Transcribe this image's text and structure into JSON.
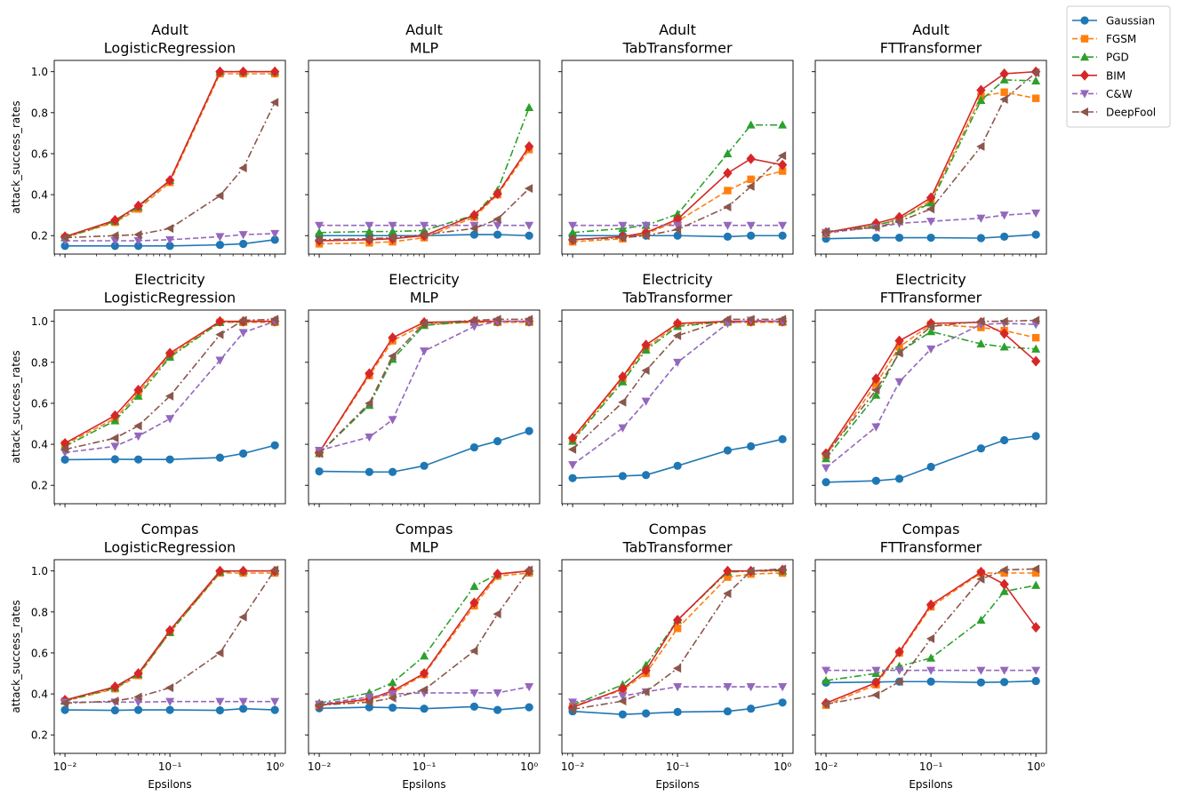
{
  "figure": {
    "xlabel": "Epsilons",
    "ylabel": "attack_success_rates",
    "xscale": "log",
    "xlim": [
      0.0079,
      1.26
    ],
    "ylim": [
      0.11,
      1.055
    ],
    "xticks": [
      0.01,
      0.1,
      1
    ],
    "xtick_labels": [
      "10⁻²",
      "10⁻¹",
      "10⁰"
    ],
    "yticks": [
      0.2,
      0.4,
      0.6,
      0.8,
      1.0
    ],
    "ytick_labels": [
      "0.2",
      "0.4",
      "0.6",
      "0.8",
      "1.0"
    ],
    "epsilons": [
      0.01,
      0.03,
      0.05,
      0.1,
      0.3,
      0.5,
      1.0
    ]
  },
  "legend": {
    "placement": "top-right outside",
    "entries": [
      {
        "name": "Gaussian",
        "color": "#1f77b4",
        "marker": "circle",
        "dash": "solid"
      },
      {
        "name": "FGSM",
        "color": "#ff7f0e",
        "marker": "square",
        "dash": "dashed"
      },
      {
        "name": "PGD",
        "color": "#2ca02c",
        "marker": "triangle-up",
        "dash": "dashdot"
      },
      {
        "name": "BIM",
        "color": "#d62728",
        "marker": "diamond",
        "dash": "solid"
      },
      {
        "name": "C&W",
        "color": "#9467bd",
        "marker": "triangle-down",
        "dash": "dashed"
      },
      {
        "name": "DeepFool",
        "color": "#8c564b",
        "marker": "triangle-left",
        "dash": "dashdot"
      }
    ]
  },
  "chart_data": [
    {
      "type": "line",
      "dataset": "Adult",
      "model": "LogisticRegression",
      "title": "Adult\nLogisticRegression",
      "x": [
        0.01,
        0.03,
        0.05,
        0.1,
        0.3,
        0.5,
        1.0
      ],
      "series": [
        {
          "name": "Gaussian",
          "values": [
            0.15,
            0.15,
            0.15,
            0.15,
            0.155,
            0.16,
            0.18
          ]
        },
        {
          "name": "FGSM",
          "values": [
            0.19,
            0.265,
            0.33,
            0.46,
            0.99,
            0.99,
            0.99
          ]
        },
        {
          "name": "PGD",
          "values": [
            0.19,
            0.27,
            0.34,
            0.47,
            1.0,
            1.0,
            1.0
          ]
        },
        {
          "name": "BIM",
          "values": [
            0.195,
            0.275,
            0.345,
            0.47,
            1.0,
            1.0,
            1.0
          ]
        },
        {
          "name": "C&W",
          "values": [
            0.175,
            0.175,
            0.175,
            0.18,
            0.195,
            0.205,
            0.21
          ]
        },
        {
          "name": "DeepFool",
          "values": [
            0.19,
            0.2,
            0.205,
            0.235,
            0.395,
            0.53,
            0.85
          ]
        }
      ]
    },
    {
      "type": "line",
      "dataset": "Adult",
      "model": "MLP",
      "title": "Adult\nMLP",
      "x": [
        0.01,
        0.03,
        0.05,
        0.1,
        0.3,
        0.5,
        1.0
      ],
      "series": [
        {
          "name": "Gaussian",
          "values": [
            0.2,
            0.2,
            0.2,
            0.2,
            0.205,
            0.205,
            0.2
          ]
        },
        {
          "name": "FGSM",
          "values": [
            0.16,
            0.165,
            0.17,
            0.19,
            0.29,
            0.4,
            0.62
          ]
        },
        {
          "name": "PGD",
          "values": [
            0.215,
            0.22,
            0.22,
            0.225,
            0.3,
            0.42,
            0.825
          ]
        },
        {
          "name": "BIM",
          "values": [
            0.175,
            0.18,
            0.185,
            0.2,
            0.3,
            0.405,
            0.635
          ]
        },
        {
          "name": "C&W",
          "values": [
            0.25,
            0.25,
            0.25,
            0.25,
            0.25,
            0.25,
            0.25
          ]
        },
        {
          "name": "DeepFool",
          "values": [
            0.18,
            0.185,
            0.19,
            0.205,
            0.235,
            0.28,
            0.43
          ]
        }
      ]
    },
    {
      "type": "line",
      "dataset": "Adult",
      "model": "TabTransformer",
      "title": "Adult\nTabTransformer",
      "x": [
        0.01,
        0.03,
        0.05,
        0.1,
        0.3,
        0.5,
        1.0
      ],
      "series": [
        {
          "name": "Gaussian",
          "values": [
            0.2,
            0.2,
            0.2,
            0.2,
            0.195,
            0.2,
            0.2
          ]
        },
        {
          "name": "FGSM",
          "values": [
            0.17,
            0.185,
            0.21,
            0.27,
            0.42,
            0.475,
            0.515
          ]
        },
        {
          "name": "PGD",
          "values": [
            0.215,
            0.235,
            0.25,
            0.305,
            0.6,
            0.74,
            0.74
          ]
        },
        {
          "name": "BIM",
          "values": [
            0.18,
            0.195,
            0.215,
            0.28,
            0.505,
            0.575,
            0.545
          ]
        },
        {
          "name": "C&W",
          "values": [
            0.25,
            0.25,
            0.25,
            0.25,
            0.25,
            0.25,
            0.25
          ]
        },
        {
          "name": "DeepFool",
          "values": [
            0.18,
            0.19,
            0.2,
            0.23,
            0.34,
            0.44,
            0.59
          ]
        }
      ]
    },
    {
      "type": "line",
      "dataset": "Adult",
      "model": "FTTransformer",
      "title": "Adult\nFTTransformer",
      "x": [
        0.01,
        0.03,
        0.05,
        0.1,
        0.3,
        0.5,
        1.0
      ],
      "series": [
        {
          "name": "Gaussian",
          "values": [
            0.185,
            0.19,
            0.19,
            0.19,
            0.188,
            0.195,
            0.205
          ]
        },
        {
          "name": "FGSM",
          "values": [
            0.21,
            0.25,
            0.28,
            0.37,
            0.88,
            0.9,
            0.87
          ]
        },
        {
          "name": "PGD",
          "values": [
            0.215,
            0.25,
            0.28,
            0.36,
            0.86,
            0.96,
            0.955
          ]
        },
        {
          "name": "BIM",
          "values": [
            0.215,
            0.26,
            0.29,
            0.385,
            0.91,
            0.99,
            1.0
          ]
        },
        {
          "name": "C&W",
          "values": [
            0.215,
            0.24,
            0.26,
            0.27,
            0.285,
            0.3,
            0.31
          ]
        },
        {
          "name": "DeepFool",
          "values": [
            0.22,
            0.24,
            0.27,
            0.33,
            0.635,
            0.865,
            0.995
          ]
        }
      ]
    },
    {
      "type": "line",
      "dataset": "Electricity",
      "model": "LogisticRegression",
      "title": "Electricity\nLogisticRegression",
      "x": [
        0.01,
        0.03,
        0.05,
        0.1,
        0.3,
        0.5,
        1.0
      ],
      "series": [
        {
          "name": "Gaussian",
          "values": [
            0.325,
            0.327,
            0.326,
            0.326,
            0.335,
            0.355,
            0.395
          ]
        },
        {
          "name": "FGSM",
          "values": [
            0.4,
            0.525,
            0.65,
            0.835,
            0.995,
            0.995,
            0.995
          ]
        },
        {
          "name": "PGD",
          "values": [
            0.39,
            0.515,
            0.635,
            0.825,
            0.995,
            1.0,
            1.0
          ]
        },
        {
          "name": "BIM",
          "values": [
            0.405,
            0.54,
            0.665,
            0.845,
            1.0,
            1.0,
            1.0
          ]
        },
        {
          "name": "C&W",
          "values": [
            0.36,
            0.39,
            0.44,
            0.525,
            0.81,
            0.945,
            1.0
          ]
        },
        {
          "name": "DeepFool",
          "values": [
            0.375,
            0.43,
            0.49,
            0.635,
            0.935,
            1.005,
            1.01
          ]
        }
      ]
    },
    {
      "type": "line",
      "dataset": "Electricity",
      "model": "MLP",
      "title": "Electricity\nMLP",
      "x": [
        0.01,
        0.03,
        0.05,
        0.1,
        0.3,
        0.5,
        1.0
      ],
      "series": [
        {
          "name": "Gaussian",
          "values": [
            0.268,
            0.265,
            0.265,
            0.295,
            0.385,
            0.415,
            0.465
          ]
        },
        {
          "name": "FGSM",
          "values": [
            0.36,
            0.735,
            0.905,
            0.985,
            0.995,
            0.995,
            0.995
          ]
        },
        {
          "name": "PGD",
          "values": [
            0.355,
            0.59,
            0.815,
            0.98,
            1.0,
            1.0,
            1.0
          ]
        },
        {
          "name": "BIM",
          "values": [
            0.36,
            0.745,
            0.92,
            0.995,
            1.0,
            1.0,
            1.0
          ]
        },
        {
          "name": "C&W",
          "values": [
            0.37,
            0.435,
            0.52,
            0.855,
            0.975,
            1.0,
            1.0
          ]
        },
        {
          "name": "DeepFool",
          "values": [
            0.355,
            0.6,
            0.83,
            0.99,
            1.005,
            1.01,
            1.01
          ]
        }
      ]
    },
    {
      "type": "line",
      "dataset": "Electricity",
      "model": "TabTransformer",
      "title": "Electricity\nTabTransformer",
      "x": [
        0.01,
        0.03,
        0.05,
        0.1,
        0.3,
        0.5,
        1.0
      ],
      "series": [
        {
          "name": "Gaussian",
          "values": [
            0.235,
            0.245,
            0.25,
            0.295,
            0.37,
            0.39,
            0.425
          ]
        },
        {
          "name": "FGSM",
          "values": [
            0.42,
            0.72,
            0.87,
            0.985,
            0.995,
            0.995,
            0.995
          ]
        },
        {
          "name": "PGD",
          "values": [
            0.415,
            0.705,
            0.86,
            0.975,
            1.0,
            1.0,
            1.0
          ]
        },
        {
          "name": "BIM",
          "values": [
            0.43,
            0.73,
            0.885,
            0.99,
            1.0,
            1.0,
            1.0
          ]
        },
        {
          "name": "C&W",
          "values": [
            0.3,
            0.48,
            0.61,
            0.8,
            0.99,
            1.005,
            1.0
          ]
        },
        {
          "name": "DeepFool",
          "values": [
            0.375,
            0.605,
            0.76,
            0.93,
            1.01,
            1.01,
            1.01
          ]
        }
      ]
    },
    {
      "type": "line",
      "dataset": "Electricity",
      "model": "FTTransformer",
      "title": "Electricity\nFTTransformer",
      "x": [
        0.01,
        0.03,
        0.05,
        0.1,
        0.3,
        0.5,
        1.0
      ],
      "series": [
        {
          "name": "Gaussian",
          "values": [
            0.215,
            0.222,
            0.232,
            0.29,
            0.38,
            0.42,
            0.44
          ]
        },
        {
          "name": "FGSM",
          "values": [
            0.345,
            0.695,
            0.875,
            0.985,
            0.97,
            0.955,
            0.92
          ]
        },
        {
          "name": "PGD",
          "values": [
            0.33,
            0.64,
            0.85,
            0.95,
            0.89,
            0.875,
            0.865
          ]
        },
        {
          "name": "BIM",
          "values": [
            0.355,
            0.72,
            0.905,
            0.99,
            0.995,
            0.94,
            0.805
          ]
        },
        {
          "name": "C&W",
          "values": [
            0.285,
            0.485,
            0.705,
            0.865,
            0.985,
            0.99,
            0.985
          ]
        },
        {
          "name": "DeepFool",
          "values": [
            0.35,
            0.665,
            0.845,
            0.975,
            1.0,
            1.0,
            1.005
          ]
        }
      ]
    },
    {
      "type": "line",
      "dataset": "Compas",
      "model": "LogisticRegression",
      "title": "Compas\nLogisticRegression",
      "x": [
        0.01,
        0.03,
        0.05,
        0.1,
        0.3,
        0.5,
        1.0
      ],
      "series": [
        {
          "name": "Gaussian",
          "values": [
            0.322,
            0.32,
            0.322,
            0.322,
            0.32,
            0.328,
            0.322
          ]
        },
        {
          "name": "FGSM",
          "values": [
            0.365,
            0.425,
            0.49,
            0.7,
            0.99,
            0.99,
            0.99
          ]
        },
        {
          "name": "PGD",
          "values": [
            0.365,
            0.43,
            0.495,
            0.7,
            0.995,
            1.0,
            1.0
          ]
        },
        {
          "name": "BIM",
          "values": [
            0.37,
            0.435,
            0.5,
            0.71,
            1.0,
            1.0,
            1.0
          ]
        },
        {
          "name": "C&W",
          "values": [
            0.36,
            0.36,
            0.36,
            0.363,
            0.363,
            0.363,
            0.363
          ]
        },
        {
          "name": "DeepFool",
          "values": [
            0.355,
            0.365,
            0.385,
            0.43,
            0.6,
            0.775,
            1.005
          ]
        }
      ]
    },
    {
      "type": "line",
      "dataset": "Compas",
      "model": "MLP",
      "title": "Compas\nMLP",
      "x": [
        0.01,
        0.03,
        0.05,
        0.1,
        0.3,
        0.5,
        1.0
      ],
      "series": [
        {
          "name": "Gaussian",
          "values": [
            0.33,
            0.335,
            0.333,
            0.328,
            0.338,
            0.322,
            0.335
          ]
        },
        {
          "name": "FGSM",
          "values": [
            0.345,
            0.37,
            0.405,
            0.495,
            0.83,
            0.975,
            0.99
          ]
        },
        {
          "name": "PGD",
          "values": [
            0.355,
            0.405,
            0.455,
            0.585,
            0.925,
            0.985,
            1.0
          ]
        },
        {
          "name": "BIM",
          "values": [
            0.345,
            0.375,
            0.415,
            0.5,
            0.845,
            0.985,
            1.0
          ]
        },
        {
          "name": "C&W",
          "values": [
            0.35,
            0.385,
            0.4,
            0.405,
            0.405,
            0.405,
            0.435
          ]
        },
        {
          "name": "DeepFool",
          "values": [
            0.345,
            0.36,
            0.38,
            0.42,
            0.61,
            0.79,
            1.005
          ]
        }
      ]
    },
    {
      "type": "line",
      "dataset": "Compas",
      "model": "TabTransformer",
      "title": "Compas\nTabTransformer",
      "x": [
        0.01,
        0.03,
        0.05,
        0.1,
        0.3,
        0.5,
        1.0
      ],
      "series": [
        {
          "name": "Gaussian",
          "values": [
            0.315,
            0.3,
            0.305,
            0.312,
            0.315,
            0.328,
            0.358
          ]
        },
        {
          "name": "FGSM",
          "values": [
            0.34,
            0.42,
            0.5,
            0.72,
            0.97,
            0.985,
            0.99
          ]
        },
        {
          "name": "PGD",
          "values": [
            0.345,
            0.445,
            0.54,
            0.76,
            0.995,
            1.0,
            1.0
          ]
        },
        {
          "name": "BIM",
          "values": [
            0.335,
            0.425,
            0.515,
            0.76,
            1.0,
            1.0,
            1.005
          ]
        },
        {
          "name": "C&W",
          "values": [
            0.36,
            0.39,
            0.41,
            0.435,
            0.435,
            0.435,
            0.435
          ]
        },
        {
          "name": "DeepFool",
          "values": [
            0.325,
            0.365,
            0.41,
            0.525,
            0.89,
            1.0,
            1.01
          ]
        }
      ]
    },
    {
      "type": "line",
      "dataset": "Compas",
      "model": "FTTransformer",
      "title": "Compas\nFTTransformer",
      "x": [
        0.01,
        0.03,
        0.05,
        0.1,
        0.3,
        0.5,
        1.0
      ],
      "series": [
        {
          "name": "Gaussian",
          "values": [
            0.455,
            0.458,
            0.46,
            0.46,
            0.456,
            0.458,
            0.463
          ]
        },
        {
          "name": "FGSM",
          "values": [
            0.345,
            0.445,
            0.6,
            0.825,
            0.99,
            0.99,
            0.99
          ]
        },
        {
          "name": "PGD",
          "values": [
            0.465,
            0.5,
            0.535,
            0.575,
            0.76,
            0.9,
            0.93
          ]
        },
        {
          "name": "BIM",
          "values": [
            0.355,
            0.455,
            0.605,
            0.835,
            0.995,
            0.935,
            0.725
          ]
        },
        {
          "name": "C&W",
          "values": [
            0.515,
            0.515,
            0.515,
            0.515,
            0.515,
            0.515,
            0.515
          ]
        },
        {
          "name": "DeepFool",
          "values": [
            0.35,
            0.395,
            0.46,
            0.67,
            0.96,
            1.005,
            1.01
          ]
        }
      ]
    }
  ]
}
